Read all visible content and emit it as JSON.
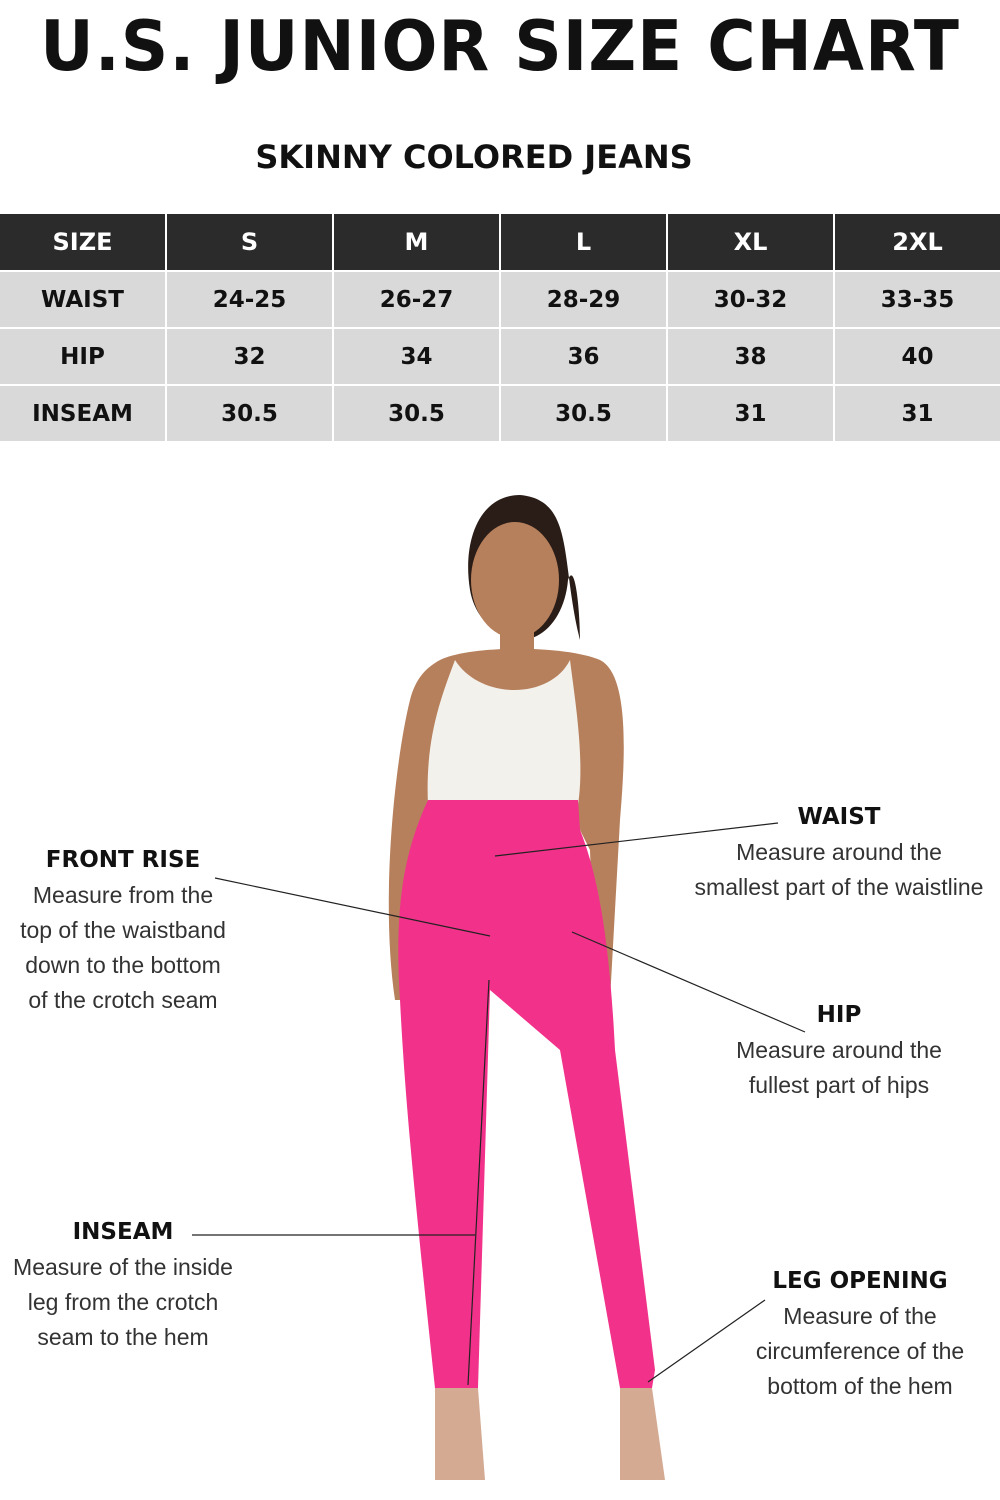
{
  "title": "U.S. JUNIOR SIZE CHART",
  "subtitle": "SKINNY COLORED JEANS",
  "table": {
    "header": [
      "SIZE",
      "S",
      "M",
      "L",
      "XL",
      "2XL"
    ],
    "rows": [
      [
        "WAIST",
        "24-25",
        "26-27",
        "28-29",
        "30-32",
        "33-35"
      ],
      [
        "HIP",
        "32",
        "34",
        "36",
        "38",
        "40"
      ],
      [
        "INSEAM",
        "30.5",
        "30.5",
        "30.5",
        "31",
        "31"
      ]
    ]
  },
  "annotations": {
    "front_rise": {
      "label": "FRONT RISE",
      "lines": [
        "Measure from the",
        "top of the waistband",
        "down to the bottom",
        "of the crotch seam"
      ]
    },
    "waist": {
      "label": "WAIST",
      "lines": [
        "Measure around the",
        "smallest part of the waistline"
      ]
    },
    "hip": {
      "label": "HIP",
      "lines": [
        "Measure around the",
        "fullest part of hips"
      ]
    },
    "inseam": {
      "label": "INSEAM",
      "lines": [
        "Measure of the inside",
        "leg from the crotch",
        "seam to the hem"
      ]
    },
    "leg_opening": {
      "label": "LEG OPENING",
      "lines": [
        "Measure of the",
        "circumference of the",
        "bottom of the hem"
      ]
    }
  },
  "colors": {
    "header_bg": "#2b2b2b",
    "cell_bg": "#d9d9d9",
    "pants": "#f2318a",
    "top": "#f3f1ec",
    "skin": "#b7805c"
  }
}
